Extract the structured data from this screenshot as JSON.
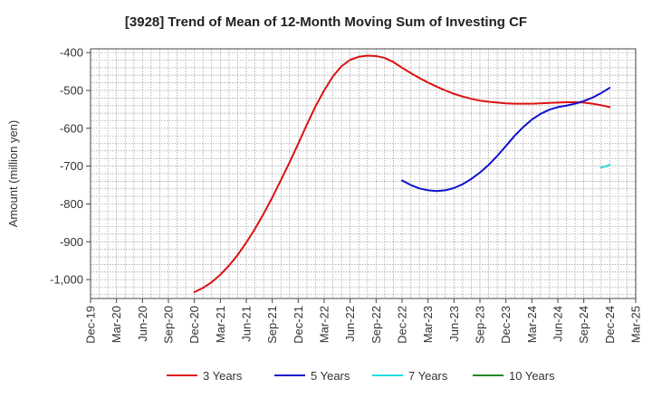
{
  "chart_data": {
    "type": "line",
    "title": "[3928]  Trend of Mean of 12-Month Moving Sum of Investing CF",
    "xlabel": "",
    "ylabel": "Amount (million yen)",
    "ylim": [
      -1050,
      -390
    ],
    "yticks": [
      -400,
      -500,
      -600,
      -700,
      -800,
      -900,
      -1000
    ],
    "ytick_labels": [
      "-400",
      "-500",
      "-600",
      "-700",
      "-800",
      "-900",
      "-1,000"
    ],
    "x_ticks": [
      "Dec-19",
      "Mar-20",
      "Jun-20",
      "Sep-20",
      "Dec-20",
      "Mar-21",
      "Jun-21",
      "Sep-21",
      "Dec-21",
      "Mar-22",
      "Jun-22",
      "Sep-22",
      "Dec-22",
      "Mar-23",
      "Jun-23",
      "Sep-23",
      "Dec-23",
      "Mar-24",
      "Jun-24",
      "Sep-24",
      "Dec-24",
      "Mar-25"
    ],
    "x_unit": "month index, 0 = Dec-19, 63 = Mar-25",
    "x_range": [
      0,
      63
    ],
    "grid": true,
    "legend_position": "bottom",
    "series": [
      {
        "name": "3 Years",
        "color": "#dd1111",
        "points": [
          [
            12,
            -1033
          ],
          [
            13,
            -1022
          ],
          [
            14,
            -1007
          ],
          [
            15,
            -987
          ],
          [
            16,
            -963
          ],
          [
            17,
            -935
          ],
          [
            18,
            -902
          ],
          [
            19,
            -866
          ],
          [
            20,
            -826
          ],
          [
            21,
            -783
          ],
          [
            22,
            -737
          ],
          [
            23,
            -690
          ],
          [
            24,
            -641
          ],
          [
            25,
            -590
          ],
          [
            26,
            -542
          ],
          [
            27,
            -500
          ],
          [
            28,
            -463
          ],
          [
            29,
            -436
          ],
          [
            30,
            -419
          ],
          [
            31,
            -411
          ],
          [
            32,
            -408
          ],
          [
            33,
            -409
          ],
          [
            34,
            -414
          ],
          [
            35,
            -425
          ],
          [
            36,
            -440
          ],
          [
            37,
            -454
          ],
          [
            38,
            -467
          ],
          [
            39,
            -479
          ],
          [
            40,
            -490
          ],
          [
            41,
            -500
          ],
          [
            42,
            -509
          ],
          [
            43,
            -516
          ],
          [
            44,
            -522
          ],
          [
            45,
            -527
          ],
          [
            46,
            -530
          ],
          [
            47,
            -532
          ],
          [
            48,
            -534
          ],
          [
            49,
            -535
          ],
          [
            50,
            -535
          ],
          [
            51,
            -535
          ],
          [
            52,
            -534
          ],
          [
            53,
            -533
          ],
          [
            54,
            -532
          ],
          [
            55,
            -531
          ],
          [
            56,
            -531
          ],
          [
            57,
            -532
          ],
          [
            58,
            -535
          ],
          [
            59,
            -539
          ],
          [
            60,
            -544
          ]
        ]
      },
      {
        "name": "5 Years",
        "color": "#1111cc",
        "points": [
          [
            36,
            -738
          ],
          [
            37,
            -750
          ],
          [
            38,
            -759
          ],
          [
            39,
            -764
          ],
          [
            40,
            -766
          ],
          [
            41,
            -764
          ],
          [
            42,
            -758
          ],
          [
            43,
            -748
          ],
          [
            44,
            -734
          ],
          [
            45,
            -717
          ],
          [
            46,
            -697
          ],
          [
            47,
            -673
          ],
          [
            48,
            -647
          ],
          [
            49,
            -620
          ],
          [
            50,
            -597
          ],
          [
            51,
            -577
          ],
          [
            52,
            -562
          ],
          [
            53,
            -551
          ],
          [
            54,
            -544
          ],
          [
            55,
            -540
          ],
          [
            56,
            -535
          ],
          [
            57,
            -528
          ],
          [
            58,
            -519
          ],
          [
            59,
            -507
          ],
          [
            60,
            -493
          ]
        ]
      },
      {
        "name": "7 Years",
        "color": "#22dddd",
        "points": [
          [
            59,
            -704
          ],
          [
            60,
            -697
          ]
        ]
      },
      {
        "name": "10 Years",
        "color": "#228822",
        "points": []
      }
    ]
  }
}
